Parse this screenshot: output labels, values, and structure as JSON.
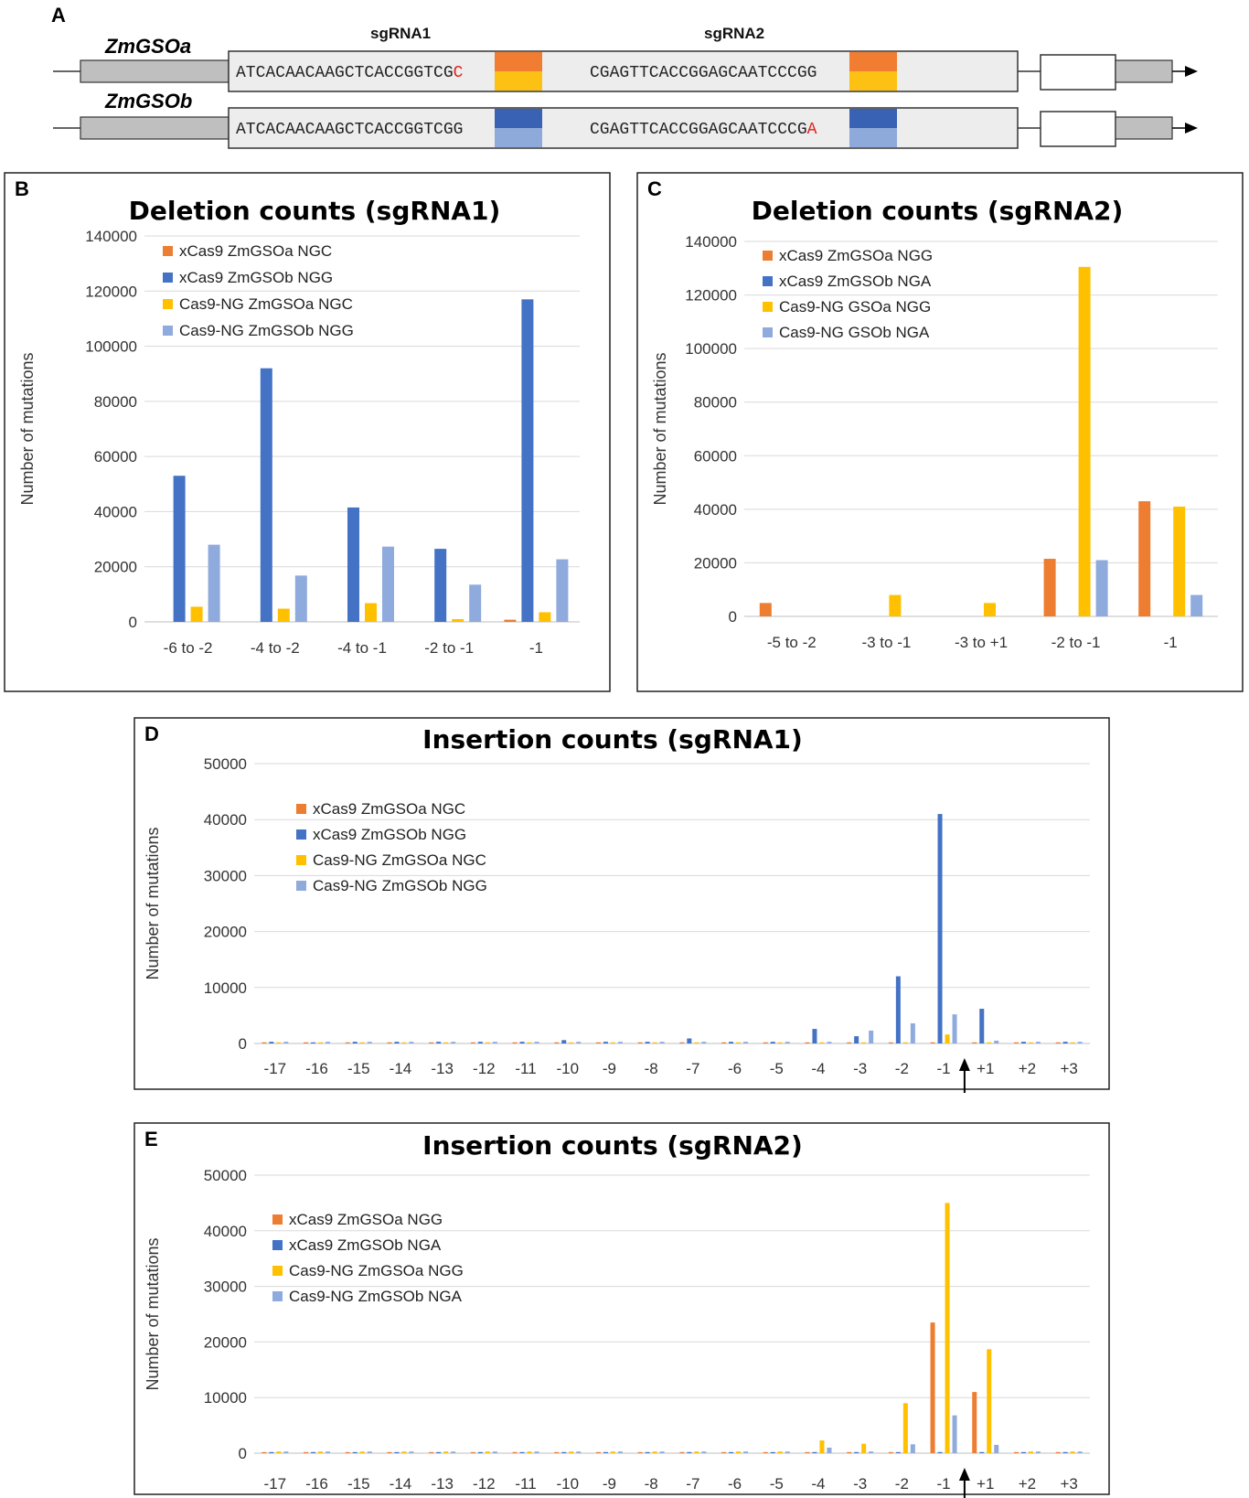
{
  "panel_a": {
    "letter": "A",
    "genes": [
      {
        "name": "ZmGSOa",
        "seq1": "ATCACAACAAGCTCACCGGTC",
        "pam1_mid": "G",
        "pam1_last": "C",
        "seq2": "CGAGTTCACCGGAGCAATCC",
        "pam2_mid": "CGG",
        "pam2_last": "",
        "pam_top": "#f07d32",
        "pam_bottom": "#fdc113"
      },
      {
        "name": "ZmGSOb",
        "seq1": "ATCACAACAAGCTCACCGGTC",
        "pam1_mid": "GG",
        "pam1_last": "",
        "seq2": "CGAGTTCACCGGAGCAATCC",
        "pam2_mid": "CG",
        "pam2_last": "A",
        "pam_top": "#3a62b4",
        "pam_bottom": "#8eaadb"
      }
    ],
    "sg1_label": "sgRNA1",
    "sg2_label": "sgRNA2",
    "mismatch_color": "#e0201c"
  },
  "chart_data": [
    {
      "panel": "B",
      "type": "bar",
      "title": "Deletion counts (sgRNA1)",
      "ylabel": "Number of mutations",
      "xlabel": "",
      "ylim": [
        0,
        140000
      ],
      "yticks": [
        0,
        20000,
        40000,
        60000,
        80000,
        100000,
        120000,
        140000
      ],
      "categories": [
        "-6 to -2",
        "-4 to -2",
        "-4 to -1",
        "-2 to -1",
        "-1"
      ],
      "legend_position": "top-left",
      "series": [
        {
          "name": "xCas9 ZmGSOa NGC",
          "color": "#ed7d31",
          "values": [
            0,
            0,
            0,
            0,
            800
          ]
        },
        {
          "name": "xCas9 ZmGSOb NGG",
          "color": "#4472c4",
          "values": [
            53000,
            92000,
            41500,
            26500,
            117000
          ]
        },
        {
          "name": "Cas9-NG ZmGSOa NGC",
          "color": "#ffc000",
          "values": [
            5500,
            4800,
            6800,
            1000,
            3500
          ]
        },
        {
          "name": "Cas9-NG ZmGSOb NGG",
          "color": "#8faadc",
          "values": [
            28000,
            16800,
            27300,
            13500,
            22700
          ]
        }
      ]
    },
    {
      "panel": "C",
      "type": "bar",
      "title": "Deletion counts (sgRNA2)",
      "ylabel": "Number of mutations",
      "xlabel": "",
      "ylim": [
        0,
        140000
      ],
      "yticks": [
        0,
        20000,
        40000,
        60000,
        80000,
        100000,
        120000,
        140000
      ],
      "categories": [
        "-5 to -2",
        "-3 to -1",
        "-3 to +1",
        "-2 to -1",
        "-1"
      ],
      "legend_position": "top-left",
      "series": [
        {
          "name": "xCas9 ZmGSOa NGG",
          "color": "#ed7d31",
          "values": [
            5000,
            0,
            0,
            21500,
            43000
          ]
        },
        {
          "name": "xCas9 ZmGSOb NGA",
          "color": "#4472c4",
          "values": [
            0,
            0,
            0,
            0,
            0
          ]
        },
        {
          "name": "Cas9-NG GSOa NGG",
          "color": "#ffc000",
          "values": [
            0,
            8000,
            5000,
            130500,
            41000
          ]
        },
        {
          "name": "Cas9-NG GSOb NGA",
          "color": "#8faadc",
          "values": [
            0,
            0,
            0,
            21000,
            8000
          ]
        }
      ]
    },
    {
      "panel": "D",
      "type": "bar",
      "title": "Insertion counts (sgRNA1)",
      "ylabel": "Number of mutations",
      "xlabel": "",
      "ylim": [
        0,
        50000
      ],
      "yticks": [
        0,
        10000,
        20000,
        30000,
        40000,
        50000
      ],
      "categories": [
        "-17",
        "-16",
        "-15",
        "-14",
        "-13",
        "-12",
        "-11",
        "-10",
        "-9",
        "-8",
        "-7",
        "-6",
        "-5",
        "-4",
        "-3",
        "-2",
        "-1",
        "+1",
        "+2",
        "+3"
      ],
      "legend_position": "top-left",
      "series": [
        {
          "name": "xCas9 ZmGSOa NGC",
          "color": "#ed7d31",
          "values": [
            200,
            200,
            200,
            200,
            200,
            200,
            200,
            200,
            200,
            200,
            200,
            200,
            200,
            200,
            200,
            200,
            200,
            200,
            200,
            200
          ]
        },
        {
          "name": "xCas9 ZmGSOb NGG",
          "color": "#4472c4",
          "values": [
            300,
            200,
            300,
            300,
            300,
            300,
            300,
            600,
            300,
            300,
            900,
            300,
            300,
            2600,
            1300,
            12000,
            41000,
            6200,
            300,
            300
          ]
        },
        {
          "name": "Cas9-NG ZmGSOa NGC",
          "color": "#ffc000",
          "values": [
            200,
            200,
            200,
            200,
            200,
            200,
            200,
            200,
            200,
            200,
            200,
            200,
            200,
            200,
            200,
            200,
            1600,
            200,
            200,
            200
          ]
        },
        {
          "name": "Cas9-NG ZmGSOb NGG",
          "color": "#8faadc",
          "values": [
            300,
            300,
            300,
            300,
            300,
            300,
            300,
            300,
            300,
            300,
            300,
            300,
            300,
            300,
            2300,
            3600,
            5200,
            500,
            300,
            300
          ]
        }
      ]
    },
    {
      "panel": "E",
      "type": "bar",
      "title": "Insertion counts (sgRNA2)",
      "ylabel": "Number of mutations",
      "xlabel": "",
      "ylim": [
        0,
        50000
      ],
      "yticks": [
        0,
        10000,
        20000,
        30000,
        40000,
        50000
      ],
      "categories": [
        "-17",
        "-16",
        "-15",
        "-14",
        "-13",
        "-12",
        "-11",
        "-10",
        "-9",
        "-8",
        "-7",
        "-6",
        "-5",
        "-4",
        "-3",
        "-2",
        "-1",
        "+1",
        "+2",
        "+3"
      ],
      "legend_position": "top-left",
      "series": [
        {
          "name": "xCas9 ZmGSOa NGG",
          "color": "#ed7d31",
          "values": [
            200,
            200,
            200,
            200,
            200,
            200,
            200,
            200,
            200,
            200,
            200,
            200,
            200,
            200,
            200,
            200,
            23500,
            11000,
            200,
            200
          ]
        },
        {
          "name": "xCas9 ZmGSOb NGA",
          "color": "#4472c4",
          "values": [
            200,
            200,
            200,
            200,
            200,
            200,
            200,
            200,
            200,
            200,
            200,
            200,
            200,
            200,
            200,
            200,
            200,
            200,
            200,
            200
          ]
        },
        {
          "name": "Cas9-NG ZmGSOa NGG",
          "color": "#ffc000",
          "values": [
            300,
            300,
            300,
            300,
            300,
            300,
            300,
            300,
            300,
            300,
            300,
            300,
            300,
            2300,
            1700,
            9000,
            45000,
            18700,
            300,
            300
          ]
        },
        {
          "name": "Cas9-NG ZmGSOb NGA",
          "color": "#8faadc",
          "values": [
            300,
            300,
            300,
            300,
            300,
            300,
            300,
            300,
            300,
            300,
            300,
            300,
            300,
            1000,
            300,
            1600,
            6800,
            1500,
            300,
            300
          ]
        }
      ]
    }
  ]
}
